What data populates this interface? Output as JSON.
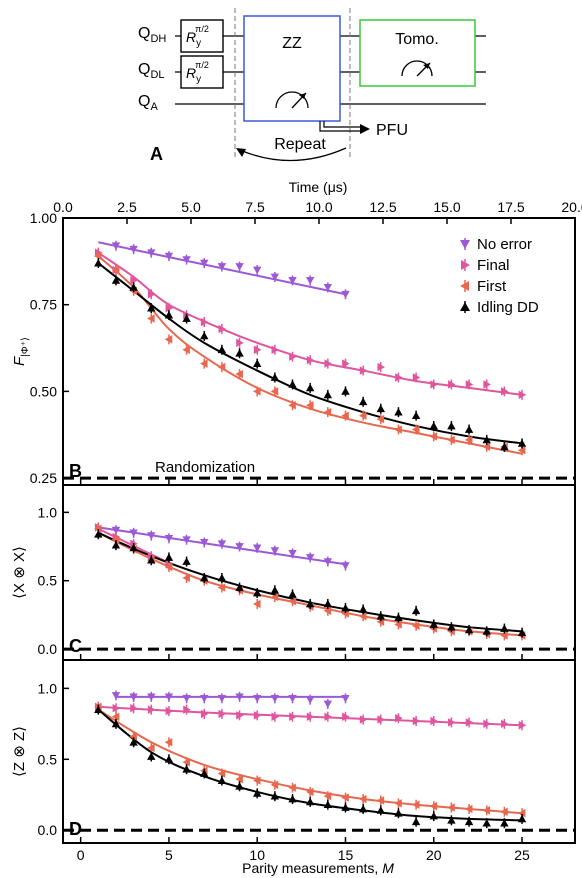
{
  "circuit": {
    "panel_label": "A",
    "qubits": [
      "Q_DH",
      "Q_DL",
      "Q_A"
    ],
    "qubit_main": [
      "Q",
      "Q",
      "Q"
    ],
    "qubit_sub": [
      "DH",
      "DL",
      "A"
    ],
    "gate_label_main": "R",
    "gate_label_sub": "y",
    "gate_label_sup": "π/2",
    "zz_label": "ZZ",
    "tomo_label": "Tomo.",
    "repeat_label": "Repeat",
    "pfu_label": "PFU"
  },
  "colors": {
    "no_error": "#9b59d6",
    "final": "#e0569d",
    "first": "#e8674f",
    "idling": "#000000",
    "zz_box": "#3a5bd9",
    "tomo_box": "#39c93a"
  },
  "time_axis": {
    "label": "Time (μs)",
    "ticks": [
      "0.0",
      "2.5",
      "5.0",
      "7.5",
      "10.0",
      "12.5",
      "15.0",
      "17.5",
      "20.0"
    ]
  },
  "x_axis": {
    "label_main": "Parity measurements, ",
    "label_var": "M",
    "ticks": [
      "0",
      "5",
      "10",
      "15",
      "20",
      "25"
    ]
  },
  "legend": [
    "No error",
    "Final",
    "First",
    "Idling DD"
  ],
  "panels": [
    {
      "letter": "B",
      "ylabel": "F|Φ⁺⟩",
      "ylabel_main": "F",
      "ylabel_sub": "|Φ⁺⟩",
      "ticks": [
        "0.25",
        "0.50",
        "0.75",
        "1.00"
      ],
      "annotation": "Randomization"
    },
    {
      "letter": "C",
      "ylabel": "⟨X ⊗ X⟩",
      "ticks": [
        "0.0",
        "0.5",
        "1.0"
      ]
    },
    {
      "letter": "D",
      "ylabel": "⟨Z ⊗ Z⟩",
      "ticks": [
        "0.0",
        "0.5",
        "1.0"
      ]
    }
  ],
  "chart_data": [
    {
      "type": "scatter",
      "panel": "B",
      "xlabel": "Parity measurements, M",
      "ylabel": "F|Φ⁺⟩",
      "x2label": "Time (μs)",
      "xlim": [
        -1,
        28
      ],
      "ylim": [
        0.23,
        1.0
      ],
      "x2lim": [
        0,
        20
      ],
      "grid": false,
      "legend_position": "top-right",
      "reference_lines": [
        {
          "y": 0.25,
          "label": "Randomization",
          "style": "dashed"
        }
      ],
      "series": [
        {
          "name": "No error",
          "marker": "triangle-down",
          "x": [
            2,
            3,
            4,
            5,
            6,
            7,
            8,
            9,
            10,
            11,
            12,
            13,
            14,
            15
          ],
          "y": [
            0.92,
            0.91,
            0.9,
            0.89,
            0.88,
            0.87,
            0.86,
            0.86,
            0.85,
            0.83,
            0.82,
            0.82,
            0.8,
            0.78
          ],
          "fit": [
            [
              1,
              0.93
            ],
            [
              15,
              0.78
            ]
          ]
        },
        {
          "name": "Final",
          "marker": "triangle-right",
          "x": [
            1,
            2,
            3,
            4,
            5,
            6,
            7,
            8,
            9,
            10,
            11,
            12,
            13,
            14,
            15,
            16,
            17,
            18,
            19,
            20,
            21,
            22,
            23,
            24,
            25
          ],
          "y": [
            0.9,
            0.85,
            0.82,
            0.78,
            0.74,
            0.72,
            0.7,
            0.68,
            0.64,
            0.62,
            0.62,
            0.6,
            0.59,
            0.58,
            0.58,
            0.56,
            0.57,
            0.54,
            0.54,
            0.52,
            0.52,
            0.52,
            0.52,
            0.5,
            0.49
          ],
          "fit": [
            [
              1,
              0.9
            ],
            [
              3,
              0.83
            ],
            [
              5,
              0.75
            ],
            [
              8,
              0.68
            ],
            [
              10,
              0.64
            ],
            [
              13,
              0.59
            ],
            [
              16,
              0.56
            ],
            [
              19,
              0.53
            ],
            [
              22,
              0.51
            ],
            [
              25,
              0.49
            ]
          ]
        },
        {
          "name": "First",
          "marker": "triangle-left",
          "x": [
            1,
            2,
            3,
            4,
            5,
            6,
            7,
            8,
            9,
            10,
            11,
            12,
            13,
            14,
            15,
            16,
            17,
            18,
            19,
            20,
            21,
            22,
            23,
            24,
            25
          ],
          "y": [
            0.89,
            0.85,
            0.79,
            0.71,
            0.65,
            0.62,
            0.58,
            0.57,
            0.55,
            0.5,
            0.5,
            0.46,
            0.46,
            0.44,
            0.43,
            0.43,
            0.42,
            0.39,
            0.39,
            0.37,
            0.36,
            0.36,
            0.34,
            0.34,
            0.33
          ],
          "fit": [
            [
              1,
              0.89
            ],
            [
              3,
              0.8
            ],
            [
              5,
              0.68
            ],
            [
              7,
              0.6
            ],
            [
              10,
              0.51
            ],
            [
              13,
              0.45
            ],
            [
              16,
              0.41
            ],
            [
              19,
              0.38
            ],
            [
              22,
              0.35
            ],
            [
              25,
              0.32
            ]
          ]
        },
        {
          "name": "Idling DD",
          "marker": "triangle-up",
          "x": [
            1,
            2,
            3,
            4,
            5,
            6,
            7,
            8,
            9,
            10,
            11,
            12,
            13,
            14,
            15,
            16,
            17,
            18,
            19,
            20,
            21,
            22,
            23,
            24,
            25
          ],
          "y": [
            0.87,
            0.82,
            0.8,
            0.74,
            0.72,
            0.71,
            0.66,
            0.62,
            0.61,
            0.58,
            0.54,
            0.52,
            0.51,
            0.49,
            0.5,
            0.47,
            0.45,
            0.44,
            0.43,
            0.4,
            0.4,
            0.39,
            0.36,
            0.34,
            0.35
          ],
          "fit": [
            [
              1,
              0.87
            ],
            [
              3,
              0.79
            ],
            [
              5,
              0.71
            ],
            [
              7,
              0.64
            ],
            [
              10,
              0.56
            ],
            [
              13,
              0.49
            ],
            [
              16,
              0.44
            ],
            [
              19,
              0.4
            ],
            [
              22,
              0.37
            ],
            [
              25,
              0.35
            ]
          ]
        }
      ]
    },
    {
      "type": "scatter",
      "panel": "C",
      "xlabel": "Parity measurements, M",
      "ylabel": "⟨X ⊗ X⟩",
      "xlim": [
        -1,
        28
      ],
      "ylim": [
        -0.08,
        1.2
      ],
      "grid": false,
      "reference_lines": [
        {
          "y": 0.0,
          "style": "dashed"
        }
      ],
      "series": [
        {
          "name": "No error",
          "marker": "triangle-down",
          "x": [
            2,
            3,
            4,
            5,
            6,
            7,
            8,
            9,
            10,
            11,
            12,
            13,
            14,
            15
          ],
          "y": [
            0.87,
            0.85,
            0.83,
            0.81,
            0.8,
            0.78,
            0.77,
            0.75,
            0.74,
            0.72,
            0.7,
            0.67,
            0.64,
            0.61
          ],
          "fit": [
            [
              1,
              0.89
            ],
            [
              15,
              0.62
            ]
          ]
        },
        {
          "name": "Final",
          "marker": "triangle-right",
          "x": [
            1,
            2,
            3,
            4,
            5
          ],
          "y": [
            0.89,
            0.82,
            0.77,
            0.68,
            0.62
          ],
          "fit": [
            [
              1,
              0.88
            ],
            [
              5,
              0.63
            ]
          ]
        },
        {
          "name": "First",
          "marker": "triangle-left",
          "x": [
            1,
            2,
            3,
            4,
            5,
            6,
            7,
            8,
            9,
            10,
            11,
            12,
            13,
            14,
            15,
            16,
            17,
            18,
            19,
            20,
            21,
            22,
            23,
            24,
            25
          ],
          "y": [
            0.88,
            0.8,
            0.73,
            0.65,
            0.6,
            0.52,
            0.5,
            0.45,
            0.43,
            0.33,
            0.38,
            0.35,
            0.31,
            0.28,
            0.26,
            0.24,
            0.2,
            0.18,
            0.17,
            0.15,
            0.13,
            0.13,
            0.11,
            0.1,
            0.1
          ],
          "fit": [
            [
              1,
              0.85
            ],
            [
              4,
              0.66
            ],
            [
              7,
              0.5
            ],
            [
              10,
              0.4
            ],
            [
              13,
              0.32
            ],
            [
              16,
              0.24
            ],
            [
              19,
              0.18
            ],
            [
              22,
              0.13
            ],
            [
              25,
              0.1
            ]
          ]
        },
        {
          "name": "Idling DD",
          "marker": "triangle-up",
          "x": [
            1,
            2,
            3,
            4,
            5,
            6,
            7,
            8,
            9,
            10,
            11,
            12,
            13,
            14,
            15,
            16,
            17,
            18,
            19,
            20,
            21,
            22,
            23,
            24,
            25
          ],
          "y": [
            0.84,
            0.76,
            0.74,
            0.65,
            0.67,
            0.64,
            0.52,
            0.52,
            0.45,
            0.41,
            0.43,
            0.4,
            0.33,
            0.33,
            0.3,
            0.29,
            0.24,
            0.23,
            0.28,
            0.18,
            0.16,
            0.14,
            0.13,
            0.15,
            0.12
          ],
          "fit": [
            [
              1,
              0.85
            ],
            [
              4,
              0.68
            ],
            [
              7,
              0.54
            ],
            [
              10,
              0.43
            ],
            [
              13,
              0.34
            ],
            [
              16,
              0.27
            ],
            [
              19,
              0.21
            ],
            [
              22,
              0.16
            ],
            [
              25,
              0.13
            ]
          ]
        }
      ]
    },
    {
      "type": "scatter",
      "panel": "D",
      "xlabel": "Parity measurements, M",
      "ylabel": "⟨Z ⊗ Z⟩",
      "xlim": [
        -1,
        28
      ],
      "ylim": [
        -0.09,
        1.2
      ],
      "grid": false,
      "reference_lines": [
        {
          "y": 0.0,
          "style": "dashed"
        }
      ],
      "series": [
        {
          "name": "No error",
          "marker": "triangle-down",
          "x": [
            2,
            3,
            4,
            5,
            6,
            7,
            8,
            9,
            10,
            11,
            12,
            13,
            14,
            15
          ],
          "y": [
            0.95,
            0.94,
            0.94,
            0.94,
            0.93,
            0.93,
            0.93,
            0.94,
            0.93,
            0.93,
            0.93,
            0.92,
            0.89,
            0.93
          ],
          "fit": [
            [
              2,
              0.94
            ],
            [
              15,
              0.94
            ]
          ]
        },
        {
          "name": "Final",
          "marker": "triangle-right",
          "x": [
            1,
            2,
            3,
            4,
            5,
            6,
            7,
            8,
            9,
            10,
            11,
            12,
            13,
            14,
            15,
            16,
            17,
            18,
            19,
            20,
            21,
            22,
            23,
            24,
            25
          ],
          "y": [
            0.87,
            0.86,
            0.86,
            0.85,
            0.84,
            0.85,
            0.82,
            0.82,
            0.81,
            0.81,
            0.8,
            0.8,
            0.8,
            0.8,
            0.8,
            0.78,
            0.78,
            0.79,
            0.77,
            0.77,
            0.76,
            0.76,
            0.75,
            0.75,
            0.74
          ],
          "fit": [
            [
              1,
              0.87
            ],
            [
              7,
              0.83
            ],
            [
              13,
              0.8
            ],
            [
              19,
              0.77
            ],
            [
              25,
              0.74
            ]
          ]
        },
        {
          "name": "First",
          "marker": "triangle-left",
          "x": [
            1,
            2,
            3,
            4,
            5,
            6,
            7,
            8,
            9,
            10,
            11,
            12,
            13,
            14,
            15,
            16,
            17,
            18,
            19,
            20,
            21,
            22,
            23,
            24,
            25
          ],
          "y": [
            0.87,
            0.8,
            0.66,
            0.58,
            0.62,
            0.48,
            0.42,
            0.4,
            0.36,
            0.35,
            0.32,
            0.3,
            0.27,
            0.24,
            0.23,
            0.22,
            0.21,
            0.19,
            0.18,
            0.17,
            0.16,
            0.15,
            0.14,
            0.13,
            0.12
          ],
          "fit": [
            [
              1,
              0.85
            ],
            [
              4,
              0.62
            ],
            [
              7,
              0.46
            ],
            [
              10,
              0.36
            ],
            [
              13,
              0.28
            ],
            [
              16,
              0.22
            ],
            [
              19,
              0.18
            ],
            [
              22,
              0.15
            ],
            [
              25,
              0.12
            ]
          ]
        },
        {
          "name": "Idling DD",
          "marker": "triangle-up",
          "x": [
            1,
            2,
            3,
            4,
            5,
            6,
            7,
            8,
            9,
            10,
            11,
            12,
            13,
            14,
            15,
            16,
            17,
            18,
            19,
            20,
            21,
            22,
            23,
            24,
            25
          ],
          "y": [
            0.85,
            0.75,
            0.62,
            0.52,
            0.5,
            0.43,
            0.4,
            0.35,
            0.31,
            0.26,
            0.24,
            0.22,
            0.2,
            0.18,
            0.16,
            0.15,
            0.14,
            0.12,
            0.06,
            0.1,
            0.07,
            0.06,
            0.05,
            0.05,
            0.08
          ],
          "fit": [
            [
              1,
              0.85
            ],
            [
              4,
              0.55
            ],
            [
              7,
              0.38
            ],
            [
              10,
              0.27
            ],
            [
              13,
              0.19
            ],
            [
              16,
              0.14
            ],
            [
              19,
              0.1
            ],
            [
              22,
              0.08
            ],
            [
              25,
              0.07
            ]
          ]
        }
      ]
    }
  ]
}
